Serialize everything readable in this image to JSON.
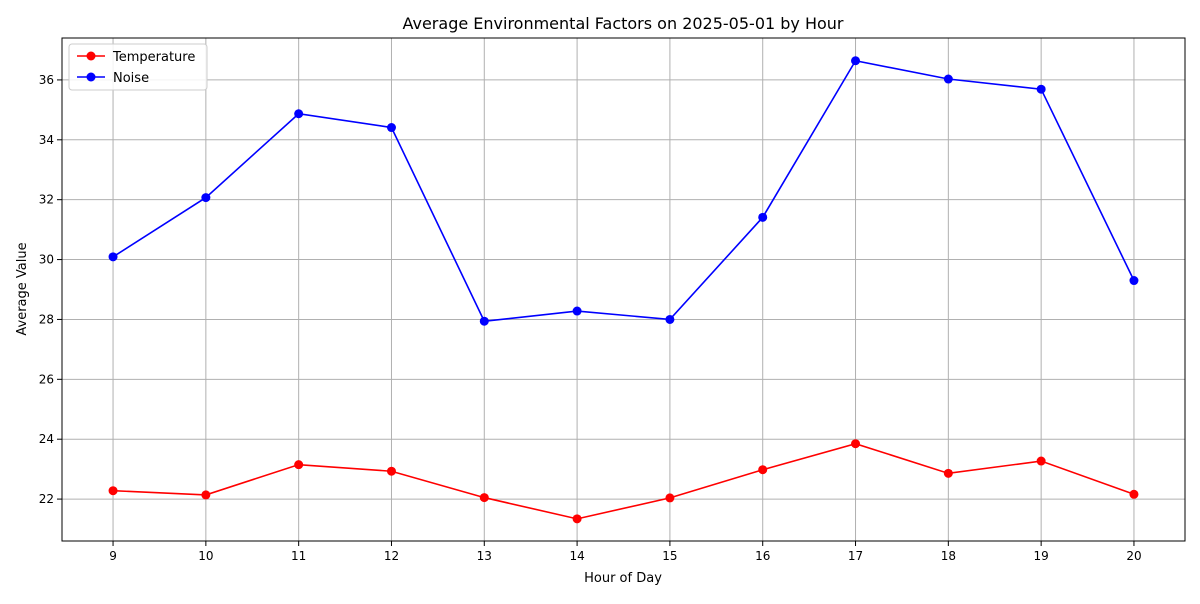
{
  "chart_data": {
    "type": "line",
    "title": "Average Environmental Factors on 2025-05-01 by Hour",
    "xlabel": "Hour of Day",
    "ylabel": "Average Value",
    "x": [
      9,
      10,
      11,
      12,
      13,
      14,
      15,
      16,
      17,
      18,
      19,
      20
    ],
    "xlim": [
      8.45,
      20.55
    ],
    "ylim": [
      20.6,
      37.4
    ],
    "yticks": [
      22,
      24,
      26,
      28,
      30,
      32,
      34,
      36
    ],
    "grid": true,
    "legend_position": "top-left",
    "series": [
      {
        "name": "Temperature",
        "color": "#ff0000",
        "marker": "circle",
        "values": [
          22.28,
          22.14,
          23.15,
          22.93,
          22.05,
          21.34,
          22.04,
          22.98,
          23.85,
          22.86,
          23.27,
          22.16
        ]
      },
      {
        "name": "Noise",
        "color": "#0000ff",
        "marker": "circle",
        "values": [
          30.09,
          32.07,
          34.87,
          34.41,
          27.94,
          28.28,
          28.0,
          31.41,
          36.64,
          36.03,
          35.69,
          29.3
        ]
      }
    ]
  }
}
